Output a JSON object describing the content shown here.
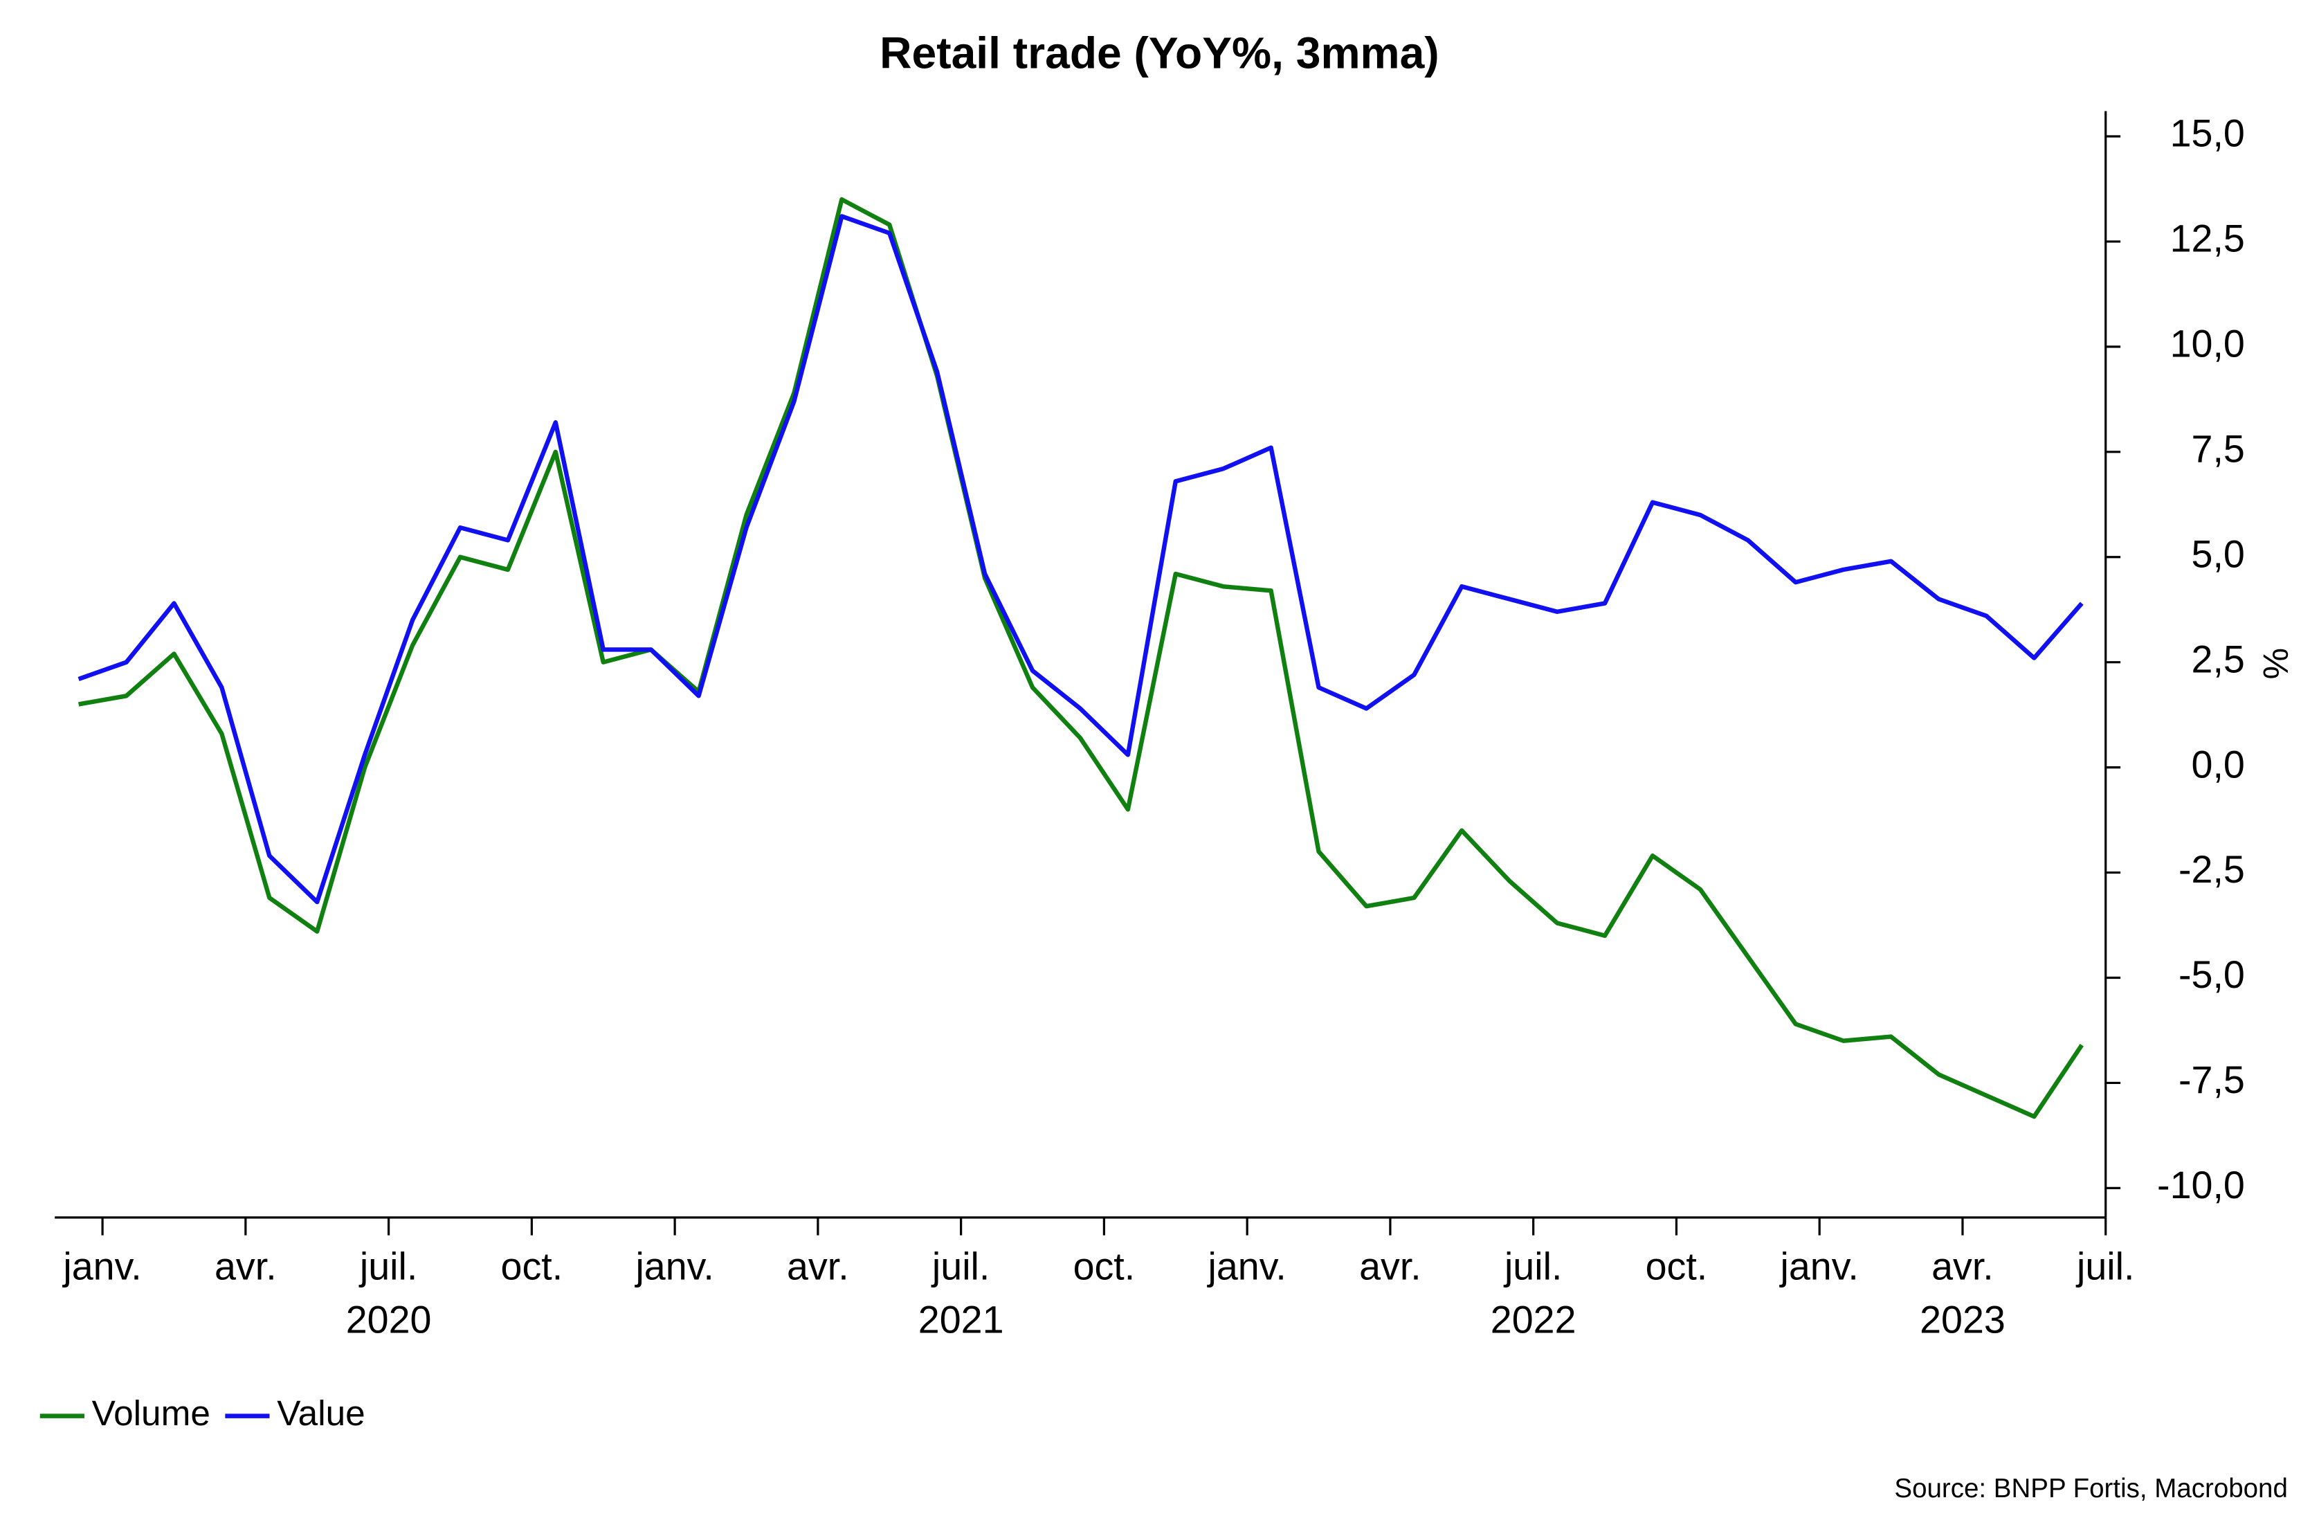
{
  "chart_data": {
    "type": "line",
    "title": "Retail trade (YoY%, 3mma)",
    "y_label": "%",
    "source": "Source: BNPP Fortis, Macrobond",
    "x": [
      "2019-12",
      "2020-01",
      "2020-02",
      "2020-03",
      "2020-04",
      "2020-05",
      "2020-06",
      "2020-07",
      "2020-08",
      "2020-09",
      "2020-10",
      "2020-11",
      "2020-12",
      "2021-01",
      "2021-02",
      "2021-03",
      "2021-04",
      "2021-05",
      "2021-06",
      "2021-07",
      "2021-08",
      "2021-09",
      "2021-10",
      "2021-11",
      "2021-12",
      "2022-01",
      "2022-02",
      "2022-03",
      "2022-04",
      "2022-05",
      "2022-06",
      "2022-07",
      "2022-08",
      "2022-09",
      "2022-10",
      "2022-11",
      "2022-12",
      "2023-01",
      "2023-02",
      "2023-03",
      "2023-04",
      "2023-05",
      "2023-06"
    ],
    "series": [
      {
        "name": "Volume",
        "color": "#108010",
        "values": [
          1.5,
          1.7,
          2.7,
          0.8,
          -3.1,
          -3.9,
          0,
          2.9,
          5.0,
          4.7,
          7.5,
          2.5,
          2.8,
          1.8,
          6.0,
          8.9,
          13.5,
          12.9,
          9.3,
          4.5,
          1.9,
          0.7,
          -1.0,
          4.6,
          4.3,
          4.2,
          -2.0,
          -3.3,
          -3.1,
          -1.5,
          -2.7,
          -3.7,
          -4.0,
          -2.1,
          -2.9,
          -4.5,
          -6.1,
          -6.5,
          -6.4,
          -7.3,
          -7.8,
          -8.3,
          -6.6
        ]
      },
      {
        "name": "Value",
        "color": "#1010f0",
        "values": [
          2.1,
          2.5,
          3.9,
          1.9,
          -2.1,
          -3.2,
          0.3,
          3.5,
          5.7,
          5.4,
          8.2,
          2.8,
          2.8,
          1.7,
          5.7,
          8.7,
          13.1,
          12.7,
          9.4,
          4.6,
          2.3,
          1.4,
          0.3,
          6.8,
          7.1,
          7.6,
          1.9,
          1.4,
          2.2,
          4.3,
          4.0,
          3.7,
          3.9,
          6.3,
          6.0,
          5.4,
          4.4,
          4.7,
          4.9,
          4.0,
          3.6,
          2.6,
          3.9
        ]
      }
    ],
    "xlim": [
      "2019-12",
      "2023-07"
    ],
    "xticks": [
      {
        "value": "2020-01",
        "label": "janv."
      },
      {
        "value": "2020-04",
        "label": "avr."
      },
      {
        "value": "2020-07",
        "label": "juil."
      },
      {
        "value": "2020-10",
        "label": "oct."
      },
      {
        "value": "2021-01",
        "label": "janv."
      },
      {
        "value": "2021-04",
        "label": "avr."
      },
      {
        "value": "2021-07",
        "label": "juil."
      },
      {
        "value": "2021-10",
        "label": "oct."
      },
      {
        "value": "2022-01",
        "label": "janv."
      },
      {
        "value": "2022-04",
        "label": "avr."
      },
      {
        "value": "2022-07",
        "label": "juil."
      },
      {
        "value": "2022-10",
        "label": "oct."
      },
      {
        "value": "2023-01",
        "label": "janv."
      },
      {
        "value": "2023-04",
        "label": "avr."
      },
      {
        "value": "2023-07",
        "label": "juil."
      }
    ],
    "year_labels": [
      "2020",
      "2021",
      "2022",
      "2023"
    ],
    "ylim": [
      -10.7,
      15.6
    ],
    "yticks": [
      {
        "value": 15,
        "label": "15,0"
      },
      {
        "value": 12.5,
        "label": "12,5"
      },
      {
        "value": 10,
        "label": "10,0"
      },
      {
        "value": 7.5,
        "label": "7,5"
      },
      {
        "value": 5,
        "label": "5,0"
      },
      {
        "value": 2.5,
        "label": "2,5"
      },
      {
        "value": 0,
        "label": "0,0"
      },
      {
        "value": -2.5,
        "label": "-2,5"
      },
      {
        "value": -5,
        "label": "-5,0"
      },
      {
        "value": -7.5,
        "label": "-7,5"
      },
      {
        "value": -10,
        "label": "-10,0"
      }
    ],
    "legend": "bottom-left",
    "grid": false
  }
}
